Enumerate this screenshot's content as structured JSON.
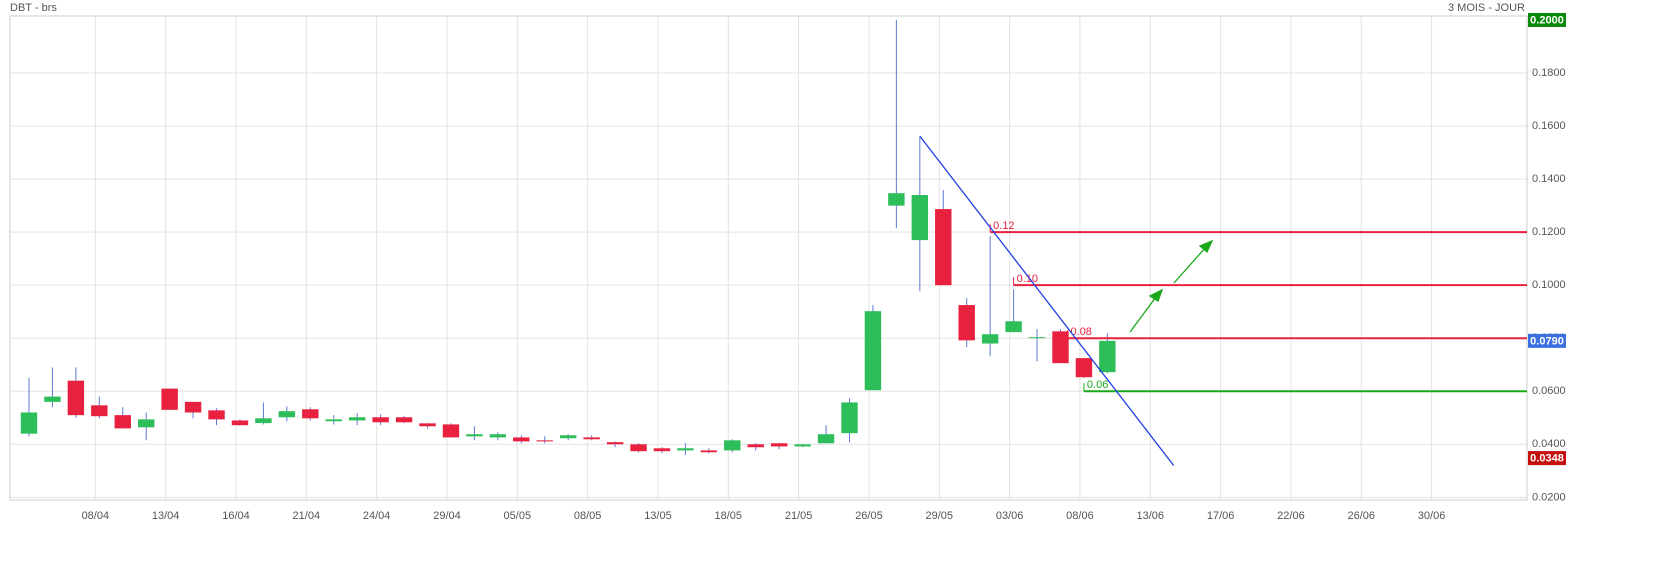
{
  "chart_data": {
    "type": "candlestick",
    "title": "DBT - brs",
    "subtitle": "3 MOIS - JOUR",
    "up_color": "#2dbe5a",
    "down_color": "#e8213f",
    "wick_color": "#5b7bd5",
    "grid": true,
    "open": [
      0.044,
      0.056,
      0.064,
      0.0547,
      0.051,
      0.0464,
      0.061,
      0.056,
      0.0528,
      0.049,
      0.048,
      0.0502,
      0.0532,
      0.0487,
      0.049,
      0.0502,
      0.0502,
      0.0479,
      0.0475,
      0.043,
      0.0426,
      0.0426,
      0.0415,
      0.0423,
      0.0426,
      0.0408,
      0.04,
      0.0385,
      0.0377,
      0.0377,
      0.0377,
      0.04,
      0.0404,
      0.0392,
      0.0404,
      0.0442,
      0.0604,
      0.13,
      0.117,
      0.1287,
      0.0925,
      0.078,
      0.0823,
      0.0804,
      0.0826,
      0.0725,
      0.0672
    ],
    "high": [
      0.065,
      0.069,
      0.069,
      0.058,
      0.054,
      0.052,
      0.061,
      0.056,
      0.0536,
      0.0494,
      0.0558,
      0.0543,
      0.054,
      0.051,
      0.0517,
      0.0513,
      0.0506,
      0.048,
      0.0479,
      0.0468,
      0.0445,
      0.0434,
      0.043,
      0.0438,
      0.0434,
      0.0411,
      0.0404,
      0.0389,
      0.0404,
      0.0385,
      0.0419,
      0.0404,
      0.0404,
      0.04,
      0.0472,
      0.0574,
      0.0925,
      0.2,
      0.156,
      0.1358,
      0.0951,
      0.1185,
      0.0985,
      0.0834,
      0.0834,
      0.0725,
      0.0819
    ],
    "low": [
      0.043,
      0.054,
      0.05,
      0.0498,
      0.046,
      0.0415,
      0.053,
      0.0498,
      0.0472,
      0.047,
      0.0475,
      0.0487,
      0.049,
      0.0475,
      0.0472,
      0.0472,
      0.048,
      0.046,
      0.0426,
      0.0415,
      0.0415,
      0.0404,
      0.0404,
      0.0415,
      0.0415,
      0.0389,
      0.037,
      0.0366,
      0.0359,
      0.0366,
      0.037,
      0.0377,
      0.0381,
      0.0389,
      0.0404,
      0.0408,
      0.0604,
      0.1215,
      0.0977,
      0.1,
      0.0766,
      0.0732,
      0.0823,
      0.0713,
      0.0706,
      0.065,
      0.0668
    ],
    "close": [
      0.052,
      0.058,
      0.051,
      0.0506,
      0.046,
      0.0494,
      0.053,
      0.052,
      0.0494,
      0.0472,
      0.0498,
      0.0525,
      0.0498,
      0.0494,
      0.0502,
      0.0483,
      0.0483,
      0.0468,
      0.0426,
      0.0438,
      0.0438,
      0.0411,
      0.0411,
      0.0434,
      0.0419,
      0.04,
      0.0374,
      0.0374,
      0.0385,
      0.037,
      0.0415,
      0.0389,
      0.0392,
      0.04,
      0.0438,
      0.0558,
      0.0902,
      0.1347,
      0.134,
      0.1,
      0.0792,
      0.0815,
      0.0864,
      0.0804,
      0.0706,
      0.0653,
      0.079
    ],
    "xlim": [
      -0.81,
      63.9
    ],
    "xticks": [
      {
        "value": 2.83,
        "label": "08/04"
      },
      {
        "value": 5.83,
        "label": "13/04"
      },
      {
        "value": 8.83,
        "label": "16/04"
      },
      {
        "value": 11.83,
        "label": "21/04"
      },
      {
        "value": 14.83,
        "label": "24/04"
      },
      {
        "value": 17.83,
        "label": "29/04"
      },
      {
        "value": 20.83,
        "label": "05/05"
      },
      {
        "value": 23.83,
        "label": "08/05"
      },
      {
        "value": 26.83,
        "label": "13/05"
      },
      {
        "value": 29.83,
        "label": "18/05"
      },
      {
        "value": 32.83,
        "label": "21/05"
      },
      {
        "value": 35.83,
        "label": "26/05"
      },
      {
        "value": 38.83,
        "label": "29/05"
      },
      {
        "value": 41.83,
        "label": "03/06"
      },
      {
        "value": 44.83,
        "label": "08/06"
      },
      {
        "value": 47.83,
        "label": "13/06"
      },
      {
        "value": 50.83,
        "label": "17/06"
      },
      {
        "value": 53.83,
        "label": "22/06"
      },
      {
        "value": 56.83,
        "label": "26/06"
      },
      {
        "value": 59.83,
        "label": "30/06"
      }
    ],
    "ylim": [
      0.019,
      0.2015
    ],
    "yticks": [
      {
        "value": 0.02,
        "label": "0.0200"
      },
      {
        "value": 0.04,
        "label": "0.0400"
      },
      {
        "value": 0.06,
        "label": "0.0600"
      },
      {
        "value": 0.08,
        "label": "0.0800"
      },
      {
        "value": 0.1,
        "label": "0.1000"
      },
      {
        "value": 0.12,
        "label": "0.1200"
      },
      {
        "value": 0.14,
        "label": "0.1400"
      },
      {
        "value": 0.16,
        "label": "0.1600"
      },
      {
        "value": 0.18,
        "label": "0.1800"
      }
    ],
    "levels": [
      {
        "value": 0.12,
        "label": "0.12",
        "start": 41,
        "color": "#e8213f"
      },
      {
        "value": 0.1,
        "label": "0.10",
        "start": 42,
        "color": "#e8213f"
      },
      {
        "value": 0.08,
        "label": "0.08",
        "start": 44.3,
        "color": "#e8213f"
      },
      {
        "value": 0.06,
        "label": "0.06",
        "start": 45,
        "color": "#1aa81a"
      }
    ],
    "trendline": {
      "x": [
        38,
        48.83
      ],
      "y": [
        0.1562,
        0.032
      ],
      "color": "#1f3fe0"
    },
    "badges": [
      {
        "value": 0.2,
        "label": "0.2000",
        "color": "#0a8a0a"
      },
      {
        "value": 0.079,
        "label": "0.0790",
        "color": "#3a6fe0"
      },
      {
        "value": 0.0348,
        "label": "0.0348",
        "color": "#c40f0f"
      }
    ]
  }
}
